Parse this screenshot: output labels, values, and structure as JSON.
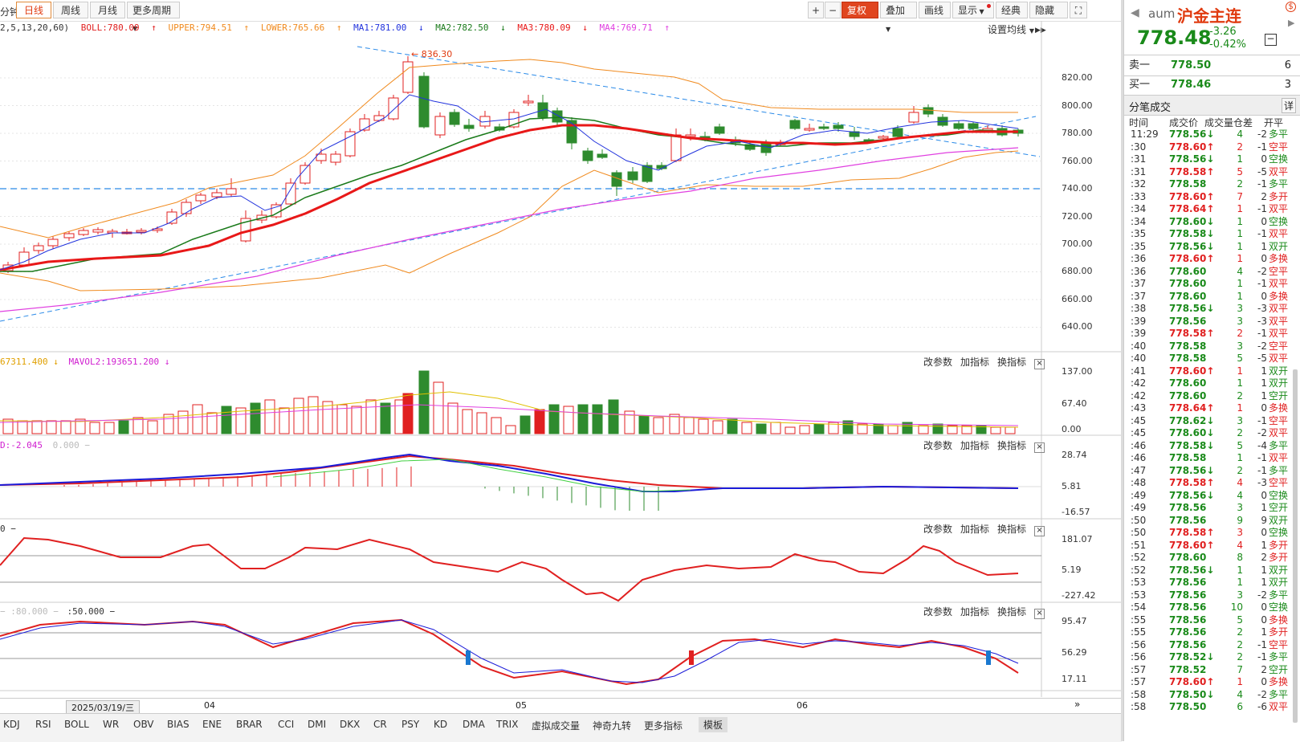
{
  "toolbar": {
    "period_partial": "分钟",
    "period_tabs": [
      "日线",
      "周线",
      "月线",
      "更多周期"
    ],
    "right_buttons": [
      "+",
      "−",
      "复权",
      "叠加",
      "画线",
      "显示",
      "经典",
      "隐藏"
    ]
  },
  "legend": {
    "ma_params": "2,5,13,20,60)",
    "boll": "BOLL:780.09",
    "upper": "UPPER:794.51",
    "lower": "LOWER:765.66",
    "ma1": "MA1:781.00",
    "ma2": "MA2:782.50",
    "ma3": "MA3:780.09",
    "ma4": "MA4:769.71",
    "settings": "设置均线"
  },
  "colors": {
    "up": "#e02020",
    "down": "#2e8b2e",
    "boll_band": "#f08a1e",
    "ma1": "#2233dd",
    "ma2": "#1a7a1a",
    "ma3": "#e81818",
    "ma4": "#e040e0",
    "trend_dash": "#2a8ae8"
  },
  "price_panel": {
    "y_ticks": [
      "820.00",
      "800.00",
      "780.00",
      "760.00",
      "740.00",
      "720.00",
      "700.00",
      "680.00",
      "660.00",
      "640.00"
    ],
    "high_label": "836.30"
  },
  "volume_panel": {
    "header_a": "67311.400",
    "header_b": "MAVOL2:193651.200",
    "y_ticks": [
      "137.00",
      "67.40",
      "0.00"
    ]
  },
  "macd_panel": {
    "header_a": "D:-2.045",
    "header_b": "0.000",
    "y_ticks": [
      "28.74",
      "5.81",
      "-16.57"
    ]
  },
  "cci_panel": {
    "header_a": "0",
    "y_ticks": [
      "181.07",
      "5.19",
      "-227.42"
    ]
  },
  "kdj_panel": {
    "header_a": ":80.000",
    "header_b": ":50.000",
    "y_ticks": [
      "95.47",
      "56.29",
      "17.11"
    ]
  },
  "panel_buttons": [
    "改参数",
    "加指标",
    "换指标"
  ],
  "date_axis": {
    "cursor_date": "2025/03/19/三",
    "months": [
      "04",
      "05",
      "06"
    ]
  },
  "bottom_tabs": [
    "KDJ",
    "RSI",
    "BOLL",
    "WR",
    "OBV",
    "BIAS",
    "ENE",
    "BRAR",
    "CCI",
    "DMI",
    "DKX",
    "CR",
    "PSY",
    "KD",
    "DMA",
    "TRIX",
    "虚拟成交量",
    "神奇九转",
    "更多指标",
    "模板"
  ],
  "sidebar": {
    "code": "aum",
    "name": "沪金主连",
    "price": "778.48",
    "change": "-3.26",
    "change_pct": "-0.42%",
    "ask_label": "卖一",
    "ask_price": "778.50",
    "ask_vol": "6",
    "bid_label": "买一",
    "bid_price": "778.46",
    "bid_vol": "3",
    "ticks_title": "分笔成交",
    "detail_btn": "详",
    "col_headers": [
      "时间",
      "成交价",
      "成交量",
      "仓差",
      "开平"
    ],
    "ticks": [
      {
        "t": "11:29",
        "p": "778.56",
        "d": "dn",
        "v": "4",
        "oi": "-2",
        "ty": "多平"
      },
      {
        "t": ":30",
        "p": "778.60",
        "d": "up",
        "v": "2",
        "oi": "-1",
        "ty": "空平"
      },
      {
        "t": ":31",
        "p": "778.56",
        "d": "dn",
        "v": "1",
        "oi": "0",
        "ty": "空换"
      },
      {
        "t": ":31",
        "p": "778.58",
        "d": "up",
        "v": "5",
        "oi": "-5",
        "ty": "双平"
      },
      {
        "t": ":32",
        "p": "778.58",
        "d": "",
        "v": "2",
        "oi": "-1",
        "ty": "多平"
      },
      {
        "t": ":33",
        "p": "778.60",
        "d": "up",
        "v": "7",
        "oi": "2",
        "ty": "多开"
      },
      {
        "t": ":34",
        "p": "778.64",
        "d": "up",
        "v": "1",
        "oi": "-1",
        "ty": "双平"
      },
      {
        "t": ":34",
        "p": "778.60",
        "d": "dn",
        "v": "1",
        "oi": "0",
        "ty": "空换"
      },
      {
        "t": ":35",
        "p": "778.58",
        "d": "dn",
        "v": "1",
        "oi": "-1",
        "ty": "双平"
      },
      {
        "t": ":35",
        "p": "778.56",
        "d": "dn",
        "v": "1",
        "oi": "1",
        "ty": "双开"
      },
      {
        "t": ":36",
        "p": "778.60",
        "d": "up",
        "v": "1",
        "oi": "0",
        "ty": "多换"
      },
      {
        "t": ":36",
        "p": "778.60",
        "d": "",
        "v": "4",
        "oi": "-2",
        "ty": "空平"
      },
      {
        "t": ":37",
        "p": "778.60",
        "d": "",
        "v": "1",
        "oi": "-1",
        "ty": "双平"
      },
      {
        "t": ":37",
        "p": "778.60",
        "d": "",
        "v": "1",
        "oi": "0",
        "ty": "多换"
      },
      {
        "t": ":38",
        "p": "778.56",
        "d": "dn",
        "v": "3",
        "oi": "-3",
        "ty": "双平"
      },
      {
        "t": ":39",
        "p": "778.56",
        "d": "",
        "v": "3",
        "oi": "-3",
        "ty": "双平"
      },
      {
        "t": ":39",
        "p": "778.58",
        "d": "up",
        "v": "2",
        "oi": "-1",
        "ty": "双平"
      },
      {
        "t": ":40",
        "p": "778.58",
        "d": "",
        "v": "3",
        "oi": "-2",
        "ty": "空平"
      },
      {
        "t": ":40",
        "p": "778.58",
        "d": "",
        "v": "5",
        "oi": "-5",
        "ty": "双平"
      },
      {
        "t": ":41",
        "p": "778.60",
        "d": "up",
        "v": "1",
        "oi": "1",
        "ty": "双开"
      },
      {
        "t": ":42",
        "p": "778.60",
        "d": "",
        "v": "1",
        "oi": "1",
        "ty": "双开"
      },
      {
        "t": ":42",
        "p": "778.60",
        "d": "",
        "v": "2",
        "oi": "1",
        "ty": "空开"
      },
      {
        "t": ":43",
        "p": "778.64",
        "d": "up",
        "v": "1",
        "oi": "0",
        "ty": "多换"
      },
      {
        "t": ":45",
        "p": "778.62",
        "d": "dn",
        "v": "3",
        "oi": "-1",
        "ty": "空平"
      },
      {
        "t": ":45",
        "p": "778.60",
        "d": "dn",
        "v": "2",
        "oi": "-2",
        "ty": "双平"
      },
      {
        "t": ":46",
        "p": "778.58",
        "d": "dn",
        "v": "5",
        "oi": "-4",
        "ty": "多平"
      },
      {
        "t": ":46",
        "p": "778.58",
        "d": "",
        "v": "1",
        "oi": "-1",
        "ty": "双平"
      },
      {
        "t": ":47",
        "p": "778.56",
        "d": "dn",
        "v": "2",
        "oi": "-1",
        "ty": "多平"
      },
      {
        "t": ":48",
        "p": "778.58",
        "d": "up",
        "v": "4",
        "oi": "-3",
        "ty": "空平"
      },
      {
        "t": ":49",
        "p": "778.56",
        "d": "dn",
        "v": "4",
        "oi": "0",
        "ty": "空换"
      },
      {
        "t": ":49",
        "p": "778.56",
        "d": "",
        "v": "3",
        "oi": "1",
        "ty": "空开"
      },
      {
        "t": ":50",
        "p": "778.56",
        "d": "",
        "v": "9",
        "oi": "9",
        "ty": "双开"
      },
      {
        "t": ":50",
        "p": "778.58",
        "d": "up",
        "v": "3",
        "oi": "0",
        "ty": "空换"
      },
      {
        "t": ":51",
        "p": "778.60",
        "d": "up",
        "v": "4",
        "oi": "1",
        "ty": "多开"
      },
      {
        "t": ":52",
        "p": "778.60",
        "d": "",
        "v": "8",
        "oi": "2",
        "ty": "多开"
      },
      {
        "t": ":52",
        "p": "778.56",
        "d": "dn",
        "v": "1",
        "oi": "1",
        "ty": "双开"
      },
      {
        "t": ":53",
        "p": "778.56",
        "d": "",
        "v": "1",
        "oi": "1",
        "ty": "双开"
      },
      {
        "t": ":53",
        "p": "778.56",
        "d": "",
        "v": "3",
        "oi": "-2",
        "ty": "多平"
      },
      {
        "t": ":54",
        "p": "778.56",
        "d": "",
        "v": "10",
        "oi": "0",
        "ty": "空换"
      },
      {
        "t": ":55",
        "p": "778.56",
        "d": "",
        "v": "5",
        "oi": "0",
        "ty": "多换"
      },
      {
        "t": ":55",
        "p": "778.56",
        "d": "",
        "v": "2",
        "oi": "1",
        "ty": "多开"
      },
      {
        "t": ":56",
        "p": "778.56",
        "d": "",
        "v": "2",
        "oi": "-1",
        "ty": "空平"
      },
      {
        "t": ":56",
        "p": "778.52",
        "d": "dn",
        "v": "2",
        "oi": "-1",
        "ty": "多平"
      },
      {
        "t": ":57",
        "p": "778.52",
        "d": "",
        "v": "7",
        "oi": "2",
        "ty": "空开"
      },
      {
        "t": ":57",
        "p": "778.60",
        "d": "up",
        "v": "1",
        "oi": "0",
        "ty": "多换"
      },
      {
        "t": ":58",
        "p": "778.50",
        "d": "dn",
        "v": "4",
        "oi": "-2",
        "ty": "多平"
      },
      {
        "t": ":58",
        "p": "778.50",
        "d": "",
        "v": "6",
        "oi": "-6",
        "ty": "双平"
      }
    ]
  }
}
